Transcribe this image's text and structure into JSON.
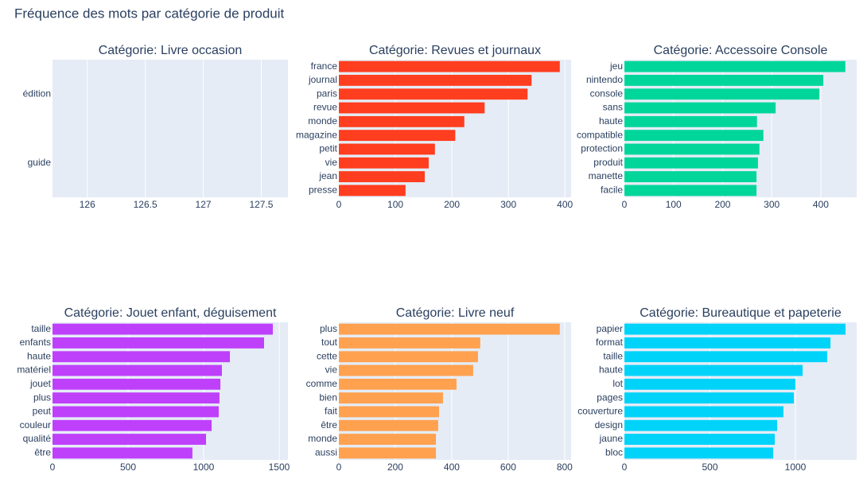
{
  "title": "Fréquence des mots par catégorie de produit",
  "chart_data": [
    {
      "type": "barh",
      "title": "Catégorie: Livre occasion",
      "categories": [
        "édition",
        "guide"
      ],
      "xlim": [
        125.7,
        127.73
      ],
      "xticks": [
        126,
        126.5,
        127,
        127.5
      ],
      "grid": true
    },
    {
      "type": "barh",
      "title": "Catégorie: Revues et journaux",
      "color": "#ff3d1f",
      "categories": [
        "france",
        "journal",
        "paris",
        "revue",
        "monde",
        "magazine",
        "petit",
        "vie",
        "jean",
        "presse"
      ],
      "values": [
        391,
        341,
        334,
        258,
        222,
        206,
        170,
        159,
        152,
        118
      ],
      "xlim": [
        0,
        411
      ],
      "xticks": [
        0,
        100,
        200,
        300,
        400
      ],
      "grid": true
    },
    {
      "type": "barh",
      "title": "Catégorie: Accessoire Console",
      "color": "#00d69a",
      "categories": [
        "jeu",
        "nintendo",
        "console",
        "sans",
        "haute",
        "compatible",
        "protection",
        "produit",
        "manette",
        "facile"
      ],
      "values": [
        450,
        405,
        397,
        308,
        270,
        283,
        275,
        272,
        269,
        269
      ],
      "xlim": [
        0,
        473
      ],
      "xticks": [
        0,
        100,
        200,
        300,
        400
      ],
      "grid": true
    },
    {
      "type": "barh",
      "title": "Catégorie: Jouet enfant, déguisement",
      "color": "#bf40fb",
      "categories": [
        "taille",
        "enfants",
        "haute",
        "matériel",
        "jouet",
        "plus",
        "peut",
        "couleur",
        "qualité",
        "être"
      ],
      "values": [
        1458,
        1400,
        1174,
        1121,
        1111,
        1105,
        1100,
        1053,
        1016,
        926
      ],
      "xlim": [
        0,
        1558
      ],
      "xticks": [
        0,
        500,
        1000,
        1500
      ],
      "grid": true
    },
    {
      "type": "barh",
      "title": "Catégorie: Livre neuf",
      "color": "#ffa14f",
      "categories": [
        "plus",
        "tout",
        "cette",
        "vie",
        "comme",
        "bien",
        "fait",
        "être",
        "monde",
        "aussi"
      ],
      "values": [
        783,
        501,
        493,
        476,
        417,
        369,
        355,
        352,
        344,
        344
      ],
      "xlim": [
        0,
        823
      ],
      "xticks": [
        0,
        200,
        400,
        600,
        800
      ],
      "grid": true
    },
    {
      "type": "barh",
      "title": "Catégorie: Bureautique et papeterie",
      "color": "#00d3f9",
      "categories": [
        "papier",
        "format",
        "taille",
        "haute",
        "lot",
        "pages",
        "couverture",
        "design",
        "jaune",
        "bloc"
      ],
      "values": [
        1293,
        1205,
        1186,
        1042,
        1000,
        991,
        930,
        893,
        879,
        870
      ],
      "xlim": [
        0,
        1358
      ],
      "xticks": [
        0,
        500,
        1000
      ],
      "grid": true
    }
  ]
}
